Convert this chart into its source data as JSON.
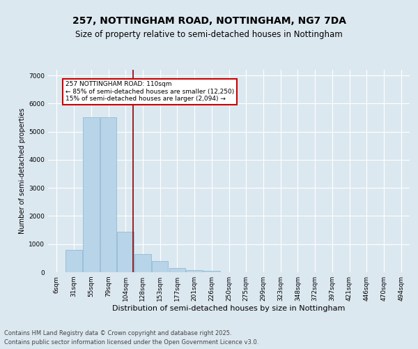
{
  "title1": "257, NOTTINGHAM ROAD, NOTTINGHAM, NG7 7DA",
  "title2": "Size of property relative to semi-detached houses in Nottingham",
  "xlabel": "Distribution of semi-detached houses by size in Nottingham",
  "ylabel": "Number of semi-detached properties",
  "categories": [
    "6sqm",
    "31sqm",
    "55sqm",
    "79sqm",
    "104sqm",
    "128sqm",
    "153sqm",
    "177sqm",
    "201sqm",
    "226sqm",
    "250sqm",
    "275sqm",
    "299sqm",
    "323sqm",
    "348sqm",
    "372sqm",
    "397sqm",
    "421sqm",
    "446sqm",
    "470sqm",
    "494sqm"
  ],
  "values": [
    0,
    800,
    5500,
    5500,
    1450,
    650,
    400,
    150,
    80,
    50,
    0,
    0,
    0,
    0,
    0,
    0,
    0,
    0,
    0,
    0,
    0
  ],
  "bar_color": "#b8d4e8",
  "bar_edge_color": "#88b4d0",
  "vline_x_index": 4.45,
  "vline_color": "#8b0000",
  "annotation_text": "257 NOTTINGHAM ROAD: 110sqm\n← 85% of semi-detached houses are smaller (12,250)\n15% of semi-detached houses are larger (2,094) →",
  "annotation_box_color": "#cc0000",
  "ylim": [
    0,
    7200
  ],
  "yticks": [
    0,
    1000,
    2000,
    3000,
    4000,
    5000,
    6000,
    7000
  ],
  "bg_color": "#dce8f0",
  "footer_line1": "Contains HM Land Registry data © Crown copyright and database right 2025.",
  "footer_line2": "Contains public sector information licensed under the Open Government Licence v3.0.",
  "title1_fontsize": 10,
  "title2_fontsize": 8.5,
  "xlabel_fontsize": 8,
  "ylabel_fontsize": 7,
  "tick_fontsize": 6.5,
  "annot_fontsize": 6.5,
  "footer_fontsize": 6
}
